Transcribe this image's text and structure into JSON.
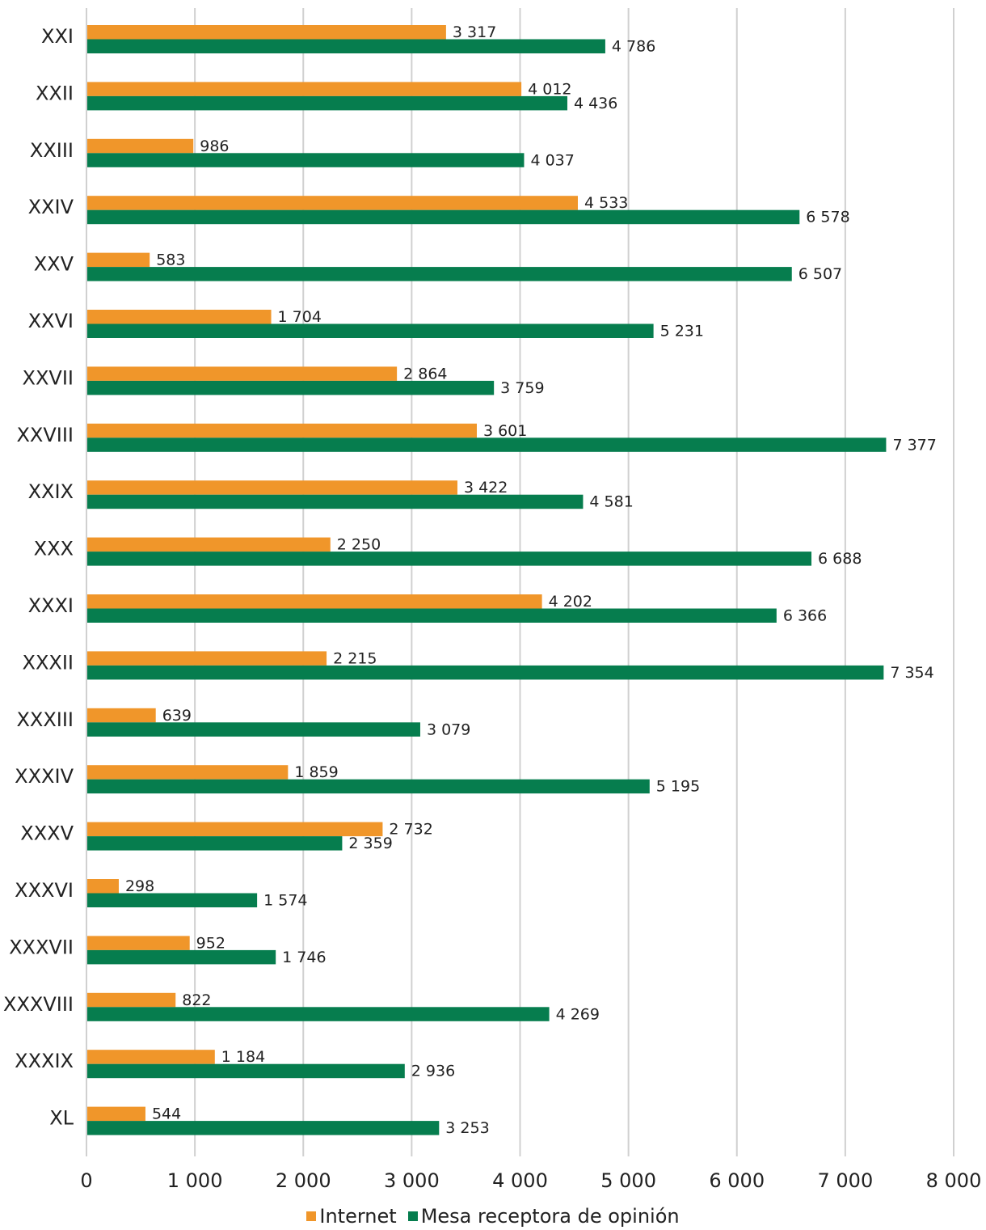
{
  "chart_data": {
    "type": "bar",
    "orientation": "horizontal",
    "categories": [
      "XXI",
      "XXII",
      "XXIII",
      "XXIV",
      "XXV",
      "XXVI",
      "XXVII",
      "XXVIII",
      "XXIX",
      "XXX",
      "XXXI",
      "XXXII",
      "XXXIII",
      "XXXIV",
      "XXXV",
      "XXXVI",
      "XXXVII",
      "XXXVIII",
      "XXXIX",
      "XL"
    ],
    "series": [
      {
        "name": "Internet",
        "color": "#F0962A",
        "values": [
          3317,
          4012,
          986,
          4533,
          583,
          1704,
          2864,
          3601,
          3422,
          2250,
          4202,
          2215,
          639,
          1859,
          2732,
          298,
          952,
          822,
          1184,
          544
        ],
        "labels": [
          "3 317",
          "4 012",
          "986",
          "4 533",
          "583",
          "1 704",
          "2 864",
          "3 601",
          "3 422",
          "2 250",
          "4 202",
          "2 215",
          "639",
          "1 859",
          "2 732",
          "298",
          "952",
          "822",
          "1 184",
          "544"
        ]
      },
      {
        "name": "Mesa receptora de opinión",
        "color": "#067D4E",
        "values": [
          4786,
          4436,
          4037,
          6578,
          6507,
          5231,
          3759,
          7377,
          4581,
          6688,
          6366,
          7354,
          3079,
          5195,
          2359,
          1574,
          1746,
          4269,
          2936,
          3253
        ],
        "labels": [
          "4 786",
          "4 436",
          "4 037",
          "6 578",
          "6 507",
          "5 231",
          "3 759",
          "7 377",
          "4 581",
          "6 688",
          "6 366",
          "7 354",
          "3 079",
          "5 195",
          "2 359",
          "1 574",
          "1 746",
          "4 269",
          "2 936",
          "3 253"
        ]
      }
    ],
    "xlim": [
      0,
      8000
    ],
    "x_ticks": [
      0,
      1000,
      2000,
      3000,
      4000,
      5000,
      6000,
      7000,
      8000
    ],
    "x_tick_labels": [
      "0",
      "1 000",
      "2 000",
      "3 000",
      "4 000",
      "5 000",
      "6 000",
      "7 000",
      "8 000"
    ],
    "grid": true,
    "legend_position": "bottom"
  }
}
